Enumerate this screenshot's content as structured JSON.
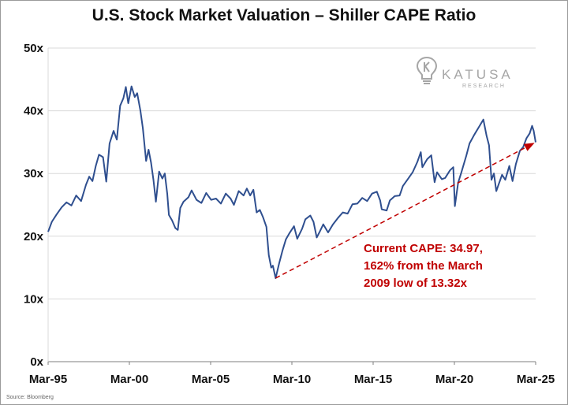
{
  "chart_data": {
    "type": "line",
    "title": "U.S. Stock Market Valuation – Shiller CAPE Ratio",
    "source": "Source: Bloomberg",
    "xlabel": "",
    "ylabel": "",
    "y_ticks": [
      "0x",
      "10x",
      "20x",
      "30x",
      "40x",
      "50x"
    ],
    "ylim": [
      0,
      50
    ],
    "x_ticks": [
      "Mar-95",
      "Mar-00",
      "Mar-05",
      "Mar-10",
      "Mar-15",
      "Mar-20",
      "Mar-25"
    ],
    "xlim": [
      1995.17,
      2025.17
    ],
    "grid": "horizontal",
    "series": [
      {
        "color": "#2f4f8f",
        "points": [
          [
            1995.17,
            20.7
          ],
          [
            1995.4,
            22.3
          ],
          [
            1995.7,
            23.5
          ],
          [
            1996.0,
            24.6
          ],
          [
            1996.3,
            25.4
          ],
          [
            1996.6,
            24.9
          ],
          [
            1996.9,
            26.5
          ],
          [
            1997.2,
            25.6
          ],
          [
            1997.5,
            28.2
          ],
          [
            1997.7,
            29.5
          ],
          [
            1997.9,
            28.8
          ],
          [
            1998.1,
            31.2
          ],
          [
            1998.3,
            33.0
          ],
          [
            1998.55,
            32.6
          ],
          [
            1998.75,
            28.7
          ],
          [
            1998.95,
            34.8
          ],
          [
            1999.2,
            36.8
          ],
          [
            1999.4,
            35.4
          ],
          [
            1999.6,
            40.8
          ],
          [
            1999.8,
            42.0
          ],
          [
            1999.95,
            43.8
          ],
          [
            2000.1,
            41.2
          ],
          [
            2000.3,
            43.9
          ],
          [
            2000.5,
            42.2
          ],
          [
            2000.65,
            42.8
          ],
          [
            2000.85,
            40.0
          ],
          [
            2001.0,
            37.2
          ],
          [
            2001.2,
            32.0
          ],
          [
            2001.35,
            33.8
          ],
          [
            2001.5,
            31.8
          ],
          [
            2001.65,
            29.0
          ],
          [
            2001.8,
            25.5
          ],
          [
            2002.0,
            30.3
          ],
          [
            2002.2,
            29.2
          ],
          [
            2002.35,
            30.0
          ],
          [
            2002.5,
            26.8
          ],
          [
            2002.6,
            23.4
          ],
          [
            2002.8,
            22.5
          ],
          [
            2003.0,
            21.3
          ],
          [
            2003.15,
            21.0
          ],
          [
            2003.3,
            24.5
          ],
          [
            2003.5,
            25.5
          ],
          [
            2003.8,
            26.2
          ],
          [
            2004.0,
            27.3
          ],
          [
            2004.3,
            25.8
          ],
          [
            2004.6,
            25.3
          ],
          [
            2004.9,
            26.9
          ],
          [
            2005.2,
            25.8
          ],
          [
            2005.5,
            26.0
          ],
          [
            2005.8,
            25.2
          ],
          [
            2006.1,
            26.8
          ],
          [
            2006.4,
            26.0
          ],
          [
            2006.6,
            25.0
          ],
          [
            2006.9,
            27.2
          ],
          [
            2007.2,
            26.5
          ],
          [
            2007.4,
            27.6
          ],
          [
            2007.6,
            26.5
          ],
          [
            2007.8,
            27.4
          ],
          [
            2008.0,
            23.8
          ],
          [
            2008.2,
            24.2
          ],
          [
            2008.4,
            23.0
          ],
          [
            2008.6,
            21.5
          ],
          [
            2008.75,
            17.0
          ],
          [
            2008.9,
            15.0
          ],
          [
            2009.0,
            15.3
          ],
          [
            2009.17,
            13.32
          ],
          [
            2009.4,
            15.8
          ],
          [
            2009.6,
            17.8
          ],
          [
            2009.8,
            19.5
          ],
          [
            2010.0,
            20.4
          ],
          [
            2010.3,
            21.6
          ],
          [
            2010.5,
            19.6
          ],
          [
            2010.8,
            21.2
          ],
          [
            2011.0,
            22.7
          ],
          [
            2011.3,
            23.3
          ],
          [
            2011.5,
            22.3
          ],
          [
            2011.7,
            19.8
          ],
          [
            2011.9,
            20.8
          ],
          [
            2012.1,
            21.9
          ],
          [
            2012.4,
            20.6
          ],
          [
            2012.7,
            21.9
          ],
          [
            2013.0,
            22.9
          ],
          [
            2013.3,
            23.8
          ],
          [
            2013.6,
            23.6
          ],
          [
            2013.9,
            25.1
          ],
          [
            2014.2,
            25.2
          ],
          [
            2014.5,
            26.1
          ],
          [
            2014.8,
            25.6
          ],
          [
            2015.1,
            26.8
          ],
          [
            2015.4,
            27.1
          ],
          [
            2015.6,
            25.7
          ],
          [
            2015.7,
            24.3
          ],
          [
            2016.0,
            24.1
          ],
          [
            2016.2,
            25.7
          ],
          [
            2016.5,
            26.4
          ],
          [
            2016.8,
            26.5
          ],
          [
            2017.0,
            28.0
          ],
          [
            2017.3,
            29.1
          ],
          [
            2017.6,
            30.2
          ],
          [
            2017.9,
            31.9
          ],
          [
            2018.1,
            33.4
          ],
          [
            2018.2,
            31.0
          ],
          [
            2018.5,
            32.3
          ],
          [
            2018.75,
            32.9
          ],
          [
            2018.95,
            28.6
          ],
          [
            2019.1,
            30.2
          ],
          [
            2019.4,
            29.1
          ],
          [
            2019.6,
            29.3
          ],
          [
            2019.9,
            30.5
          ],
          [
            2020.1,
            31.0
          ],
          [
            2020.2,
            24.8
          ],
          [
            2020.4,
            28.5
          ],
          [
            2020.6,
            30.2
          ],
          [
            2020.9,
            32.8
          ],
          [
            2021.1,
            34.8
          ],
          [
            2021.4,
            36.2
          ],
          [
            2021.7,
            37.5
          ],
          [
            2021.95,
            38.6
          ],
          [
            2022.15,
            36.0
          ],
          [
            2022.3,
            34.5
          ],
          [
            2022.45,
            29.0
          ],
          [
            2022.6,
            30.0
          ],
          [
            2022.75,
            27.2
          ],
          [
            2022.9,
            28.3
          ],
          [
            2023.1,
            29.8
          ],
          [
            2023.3,
            29.0
          ],
          [
            2023.55,
            31.2
          ],
          [
            2023.75,
            28.8
          ],
          [
            2023.95,
            31.5
          ],
          [
            2024.2,
            33.6
          ],
          [
            2024.4,
            34.2
          ],
          [
            2024.6,
            35.6
          ],
          [
            2024.8,
            36.4
          ],
          [
            2024.95,
            37.6
          ],
          [
            2025.05,
            36.8
          ],
          [
            2025.17,
            34.97
          ]
        ]
      }
    ],
    "trend_arrow": {
      "from": [
        2009.17,
        13.32
      ],
      "to": [
        2025.17,
        34.97
      ],
      "color": "#c00000"
    },
    "annotation": {
      "lines": [
        "Current CAPE: 34.97,",
        "162% from the March",
        "2009 low of 13.32x"
      ],
      "color": "#c00000"
    }
  },
  "brand": {
    "name": "KATUSA",
    "sub": "RESEARCH"
  },
  "colors": {
    "line": "#2f4f8f",
    "grid": "#d9d9d9",
    "annotation": "#c00000"
  }
}
